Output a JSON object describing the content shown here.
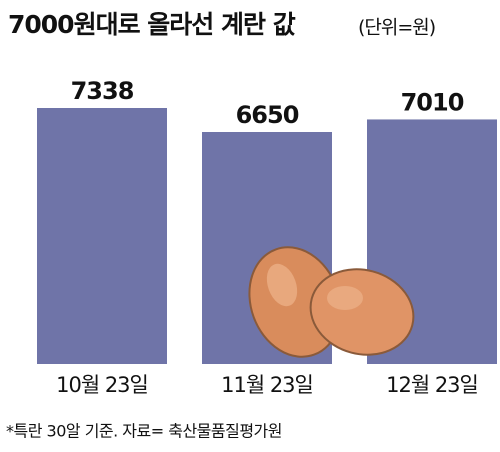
{
  "chart_data": {
    "type": "bar",
    "title": "7000원대로 올라선 계란 값",
    "subtitle": "(단위=원)",
    "categories": [
      "10월 23일",
      "11월 23일",
      "12월 23일"
    ],
    "values": [
      7338,
      6650,
      7010
    ],
    "color": "#6f74a8",
    "footnote": "*특란 30알 기준. 자료= 축산물품질평가원"
  }
}
